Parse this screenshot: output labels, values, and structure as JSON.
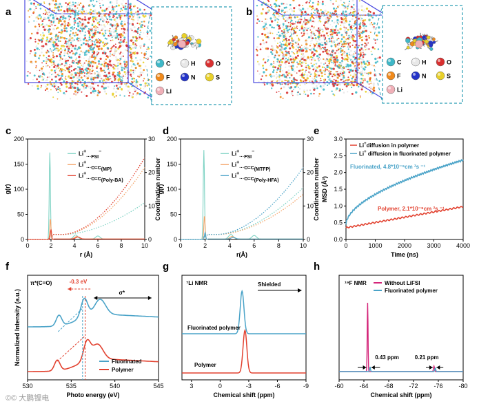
{
  "panels": {
    "a": "a",
    "b": "b",
    "c": "c",
    "d": "d",
    "e": "e",
    "f": "f",
    "g": "g",
    "h": "h"
  },
  "element_legend": {
    "C": "C",
    "H": "H",
    "O": "O",
    "F": "F",
    "N": "N",
    "S": "S",
    "Li": "Li"
  },
  "colors": {
    "C": "#3fb8c8",
    "H": "#e8e8e8",
    "O": "#d93030",
    "F": "#f08a1c",
    "N": "#2434c8",
    "S": "#e8d02a",
    "Li": "#f0b0b8",
    "teal": "#7fd3c4",
    "orange": "#f4a56a",
    "red": "#e2412f",
    "blue": "#4aa3c8",
    "magenta": "#d4267a",
    "box": "#4a4ae0",
    "dash": "#2a9db5"
  },
  "watermark": "©© 大鹏锂电",
  "chart_data": [
    {
      "id": "c",
      "type": "line",
      "xlabel": "r (Å)",
      "ylabel": "g(r)",
      "y2label": "Coordination number",
      "xlim": [
        0,
        10
      ],
      "ylim": [
        0,
        200
      ],
      "y2lim": [
        0,
        30
      ],
      "xticks": [
        0,
        2,
        4,
        6,
        8,
        10
      ],
      "yticks": [
        0,
        50,
        100,
        150,
        200
      ],
      "y2ticks": [
        0,
        10,
        20,
        30
      ],
      "legend": [
        {
          "pre": "Li",
          "sup": "+",
          "mid": "···FSI",
          "sup2": "−",
          "sub": ""
        },
        {
          "pre": "Li",
          "sup": "+",
          "mid": "···O=C",
          "sup2": "",
          "sub": "(MP)"
        },
        {
          "pre": "Li",
          "sup": "+",
          "mid": "···O=C",
          "sup2": "",
          "sub": "(Poly-BA)"
        }
      ],
      "series": [
        {
          "color": "teal",
          "peak": 1.9,
          "height": 173,
          "peaks2": [
            [
              4.1,
              8
            ],
            [
              6.0,
              6
            ]
          ],
          "cn_end": 9.5
        },
        {
          "color": "orange",
          "peak": 1.95,
          "height": 42,
          "peaks2": [
            [
              4.2,
              5
            ]
          ],
          "cn_end": 20
        },
        {
          "color": "red",
          "peak": 2.0,
          "height": 20,
          "peaks2": [
            [
              4.3,
              4
            ]
          ],
          "cn_end": 23
        }
      ]
    },
    {
      "id": "d",
      "type": "line",
      "xlabel": "r(Å)",
      "ylabel": "g(r)",
      "y2label": "Coordination number",
      "xlim": [
        0,
        10
      ],
      "ylim": [
        0,
        200
      ],
      "y2lim": [
        0,
        30
      ],
      "xticks": [
        0,
        2,
        4,
        6,
        8,
        10
      ],
      "yticks": [
        0,
        50,
        100,
        150,
        200
      ],
      "y2ticks": [
        0,
        10,
        20,
        30
      ],
      "legend": [
        {
          "pre": "Li",
          "sup": "+",
          "mid": "···FSI",
          "sup2": "−",
          "sub": ""
        },
        {
          "pre": "Li",
          "sup": "+",
          "mid": "···O=C",
          "sup2": "",
          "sub": "(MTFP)"
        },
        {
          "pre": "Li",
          "sup": "+",
          "mid": "···O=C",
          "sup2": "",
          "sub": "(Poly-HFA)"
        }
      ],
      "series": [
        {
          "color": "teal",
          "peak": 1.9,
          "height": 178,
          "peaks2": [
            [
              4.1,
              9
            ],
            [
              6.0,
              7
            ]
          ],
          "cn_end": 14
        },
        {
          "color": "orange",
          "peak": 1.95,
          "height": 48,
          "peaks2": [
            [
              4.2,
              5
            ]
          ],
          "cn_end": 12
        },
        {
          "color": "blue",
          "peak": 2.0,
          "height": 14,
          "peaks2": [
            [
              4.3,
              3
            ]
          ],
          "cn_end": 20
        }
      ]
    },
    {
      "id": "e",
      "type": "line",
      "xlabel": "Time (ns)",
      "ylabel": "MSD (Å²)",
      "xlim": [
        0,
        4000
      ],
      "ylim": [
        0,
        3.0
      ],
      "xticks": [
        0,
        1000,
        2000,
        3000,
        4000
      ],
      "yticks": [
        0.0,
        0.5,
        1.0,
        1.5,
        2.0,
        2.5,
        3.0
      ],
      "legend": [
        {
          "pre": "Li",
          "sup": "+",
          "mid": "diffusion in polymer"
        },
        {
          "pre": "Li",
          "sup": "+",
          "mid": " diffusion in fluorinated polymer"
        }
      ],
      "annotations": [
        {
          "text": "Fluorinated, 4.8*10⁻⁹cm ²s ⁻¹",
          "color": "blue"
        },
        {
          "text": "Polymer, 2.1*10⁻⁹cm ²s ⁻¹",
          "color": "red"
        }
      ],
      "series": [
        {
          "name": "Polymer",
          "color": "red",
          "start": 0.35,
          "end": 0.98
        },
        {
          "name": "Fluorinated",
          "color": "blue",
          "start": 0.45,
          "end": 2.37
        }
      ]
    },
    {
      "id": "f",
      "type": "line",
      "xlabel": "Photo energy (eV)",
      "ylabel": "Normalized Intensity (a.u.)",
      "xlim": [
        530,
        545
      ],
      "xticks": [
        530,
        535,
        540,
        545
      ],
      "annotations": [
        "π*(C=O)",
        "-0.3 eV",
        "σ*"
      ],
      "legend": [
        "Fluorinated",
        "Polymer"
      ],
      "series": [
        {
          "name": "Fluorinated",
          "color": "blue",
          "p1": 533.6,
          "p2": 536.5,
          "p3": 538.3
        },
        {
          "name": "Polymer",
          "color": "red",
          "p1": 533.4,
          "p2": 536.8,
          "p3": 538.0
        }
      ]
    },
    {
      "id": "g",
      "type": "line",
      "title": "⁷Li NMR",
      "arrow_label": "Shielded",
      "xlabel": "Chemical shift (ppm)",
      "xlim": [
        4,
        -9
      ],
      "xticks": [
        3,
        0,
        -3,
        -6,
        -9
      ],
      "labels": [
        "Fluorinated polymer",
        "Polymer"
      ],
      "series": [
        {
          "name": "Fluorinated polymer",
          "color": "blue",
          "peak": -2.3
        },
        {
          "name": "Polymer",
          "color": "red",
          "peak": -2.6
        }
      ]
    },
    {
      "id": "h",
      "type": "line",
      "title": "¹⁹F NMR",
      "xlabel": "Chemical shift (ppm)",
      "xlim": [
        -60,
        -80
      ],
      "xticks": [
        -60,
        -64,
        -68,
        -72,
        -76,
        -80
      ],
      "legend": [
        "Without LiFSI",
        "Fluorinated polymer"
      ],
      "annotations": [
        "0.43 ppm",
        "0.21 ppm"
      ],
      "series": [
        {
          "name": "Without LiFSI",
          "color": "magenta",
          "peaks": [
            -64.6,
            -75.3
          ]
        },
        {
          "name": "Fluorinated polymer",
          "color": "blue",
          "peaks": [
            -65.0,
            -75.5
          ]
        }
      ]
    }
  ]
}
